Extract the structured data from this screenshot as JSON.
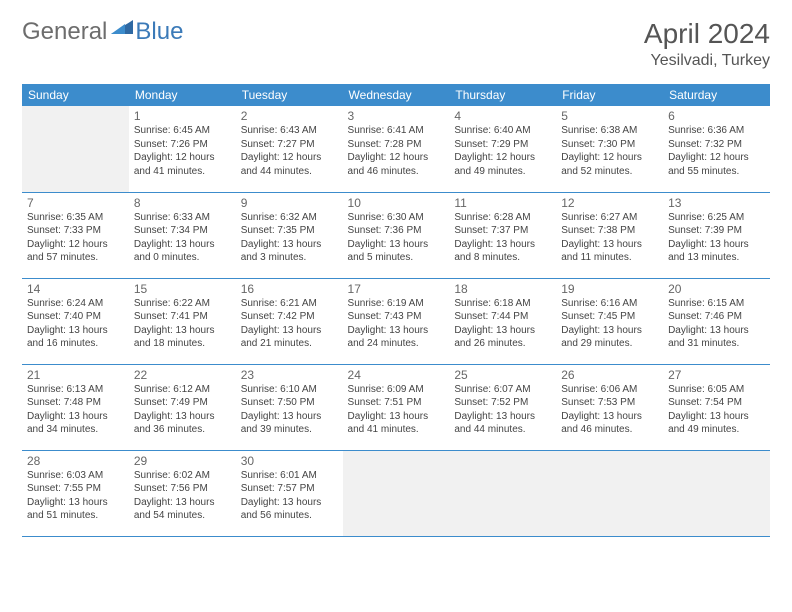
{
  "logo": {
    "general": "General",
    "blue": "Blue"
  },
  "title": {
    "month": "April 2024",
    "location": "Yesilvadi, Turkey"
  },
  "colors": {
    "header_bg": "#3c8ccc",
    "header_text": "#ffffff",
    "rule": "#3c8ccc",
    "empty_bg": "#f1f1f1",
    "body_text": "#444444",
    "daynum": "#666666",
    "logo_gray": "#6d6d6d",
    "logo_blue": "#3b7ab8"
  },
  "day_headers": [
    "Sunday",
    "Monday",
    "Tuesday",
    "Wednesday",
    "Thursday",
    "Friday",
    "Saturday"
  ],
  "weeks": [
    [
      {
        "n": "",
        "sr": "",
        "ss": "",
        "dl": ""
      },
      {
        "n": "1",
        "sr": "6:45 AM",
        "ss": "7:26 PM",
        "dl": "12 hours and 41 minutes."
      },
      {
        "n": "2",
        "sr": "6:43 AM",
        "ss": "7:27 PM",
        "dl": "12 hours and 44 minutes."
      },
      {
        "n": "3",
        "sr": "6:41 AM",
        "ss": "7:28 PM",
        "dl": "12 hours and 46 minutes."
      },
      {
        "n": "4",
        "sr": "6:40 AM",
        "ss": "7:29 PM",
        "dl": "12 hours and 49 minutes."
      },
      {
        "n": "5",
        "sr": "6:38 AM",
        "ss": "7:30 PM",
        "dl": "12 hours and 52 minutes."
      },
      {
        "n": "6",
        "sr": "6:36 AM",
        "ss": "7:32 PM",
        "dl": "12 hours and 55 minutes."
      }
    ],
    [
      {
        "n": "7",
        "sr": "6:35 AM",
        "ss": "7:33 PM",
        "dl": "12 hours and 57 minutes."
      },
      {
        "n": "8",
        "sr": "6:33 AM",
        "ss": "7:34 PM",
        "dl": "13 hours and 0 minutes."
      },
      {
        "n": "9",
        "sr": "6:32 AM",
        "ss": "7:35 PM",
        "dl": "13 hours and 3 minutes."
      },
      {
        "n": "10",
        "sr": "6:30 AM",
        "ss": "7:36 PM",
        "dl": "13 hours and 5 minutes."
      },
      {
        "n": "11",
        "sr": "6:28 AM",
        "ss": "7:37 PM",
        "dl": "13 hours and 8 minutes."
      },
      {
        "n": "12",
        "sr": "6:27 AM",
        "ss": "7:38 PM",
        "dl": "13 hours and 11 minutes."
      },
      {
        "n": "13",
        "sr": "6:25 AM",
        "ss": "7:39 PM",
        "dl": "13 hours and 13 minutes."
      }
    ],
    [
      {
        "n": "14",
        "sr": "6:24 AM",
        "ss": "7:40 PM",
        "dl": "13 hours and 16 minutes."
      },
      {
        "n": "15",
        "sr": "6:22 AM",
        "ss": "7:41 PM",
        "dl": "13 hours and 18 minutes."
      },
      {
        "n": "16",
        "sr": "6:21 AM",
        "ss": "7:42 PM",
        "dl": "13 hours and 21 minutes."
      },
      {
        "n": "17",
        "sr": "6:19 AM",
        "ss": "7:43 PM",
        "dl": "13 hours and 24 minutes."
      },
      {
        "n": "18",
        "sr": "6:18 AM",
        "ss": "7:44 PM",
        "dl": "13 hours and 26 minutes."
      },
      {
        "n": "19",
        "sr": "6:16 AM",
        "ss": "7:45 PM",
        "dl": "13 hours and 29 minutes."
      },
      {
        "n": "20",
        "sr": "6:15 AM",
        "ss": "7:46 PM",
        "dl": "13 hours and 31 minutes."
      }
    ],
    [
      {
        "n": "21",
        "sr": "6:13 AM",
        "ss": "7:48 PM",
        "dl": "13 hours and 34 minutes."
      },
      {
        "n": "22",
        "sr": "6:12 AM",
        "ss": "7:49 PM",
        "dl": "13 hours and 36 minutes."
      },
      {
        "n": "23",
        "sr": "6:10 AM",
        "ss": "7:50 PM",
        "dl": "13 hours and 39 minutes."
      },
      {
        "n": "24",
        "sr": "6:09 AM",
        "ss": "7:51 PM",
        "dl": "13 hours and 41 minutes."
      },
      {
        "n": "25",
        "sr": "6:07 AM",
        "ss": "7:52 PM",
        "dl": "13 hours and 44 minutes."
      },
      {
        "n": "26",
        "sr": "6:06 AM",
        "ss": "7:53 PM",
        "dl": "13 hours and 46 minutes."
      },
      {
        "n": "27",
        "sr": "6:05 AM",
        "ss": "7:54 PM",
        "dl": "13 hours and 49 minutes."
      }
    ],
    [
      {
        "n": "28",
        "sr": "6:03 AM",
        "ss": "7:55 PM",
        "dl": "13 hours and 51 minutes."
      },
      {
        "n": "29",
        "sr": "6:02 AM",
        "ss": "7:56 PM",
        "dl": "13 hours and 54 minutes."
      },
      {
        "n": "30",
        "sr": "6:01 AM",
        "ss": "7:57 PM",
        "dl": "13 hours and 56 minutes."
      },
      {
        "n": "",
        "sr": "",
        "ss": "",
        "dl": ""
      },
      {
        "n": "",
        "sr": "",
        "ss": "",
        "dl": ""
      },
      {
        "n": "",
        "sr": "",
        "ss": "",
        "dl": ""
      },
      {
        "n": "",
        "sr": "",
        "ss": "",
        "dl": ""
      }
    ]
  ],
  "labels": {
    "sunrise": "Sunrise:",
    "sunset": "Sunset:",
    "daylight": "Daylight:"
  }
}
